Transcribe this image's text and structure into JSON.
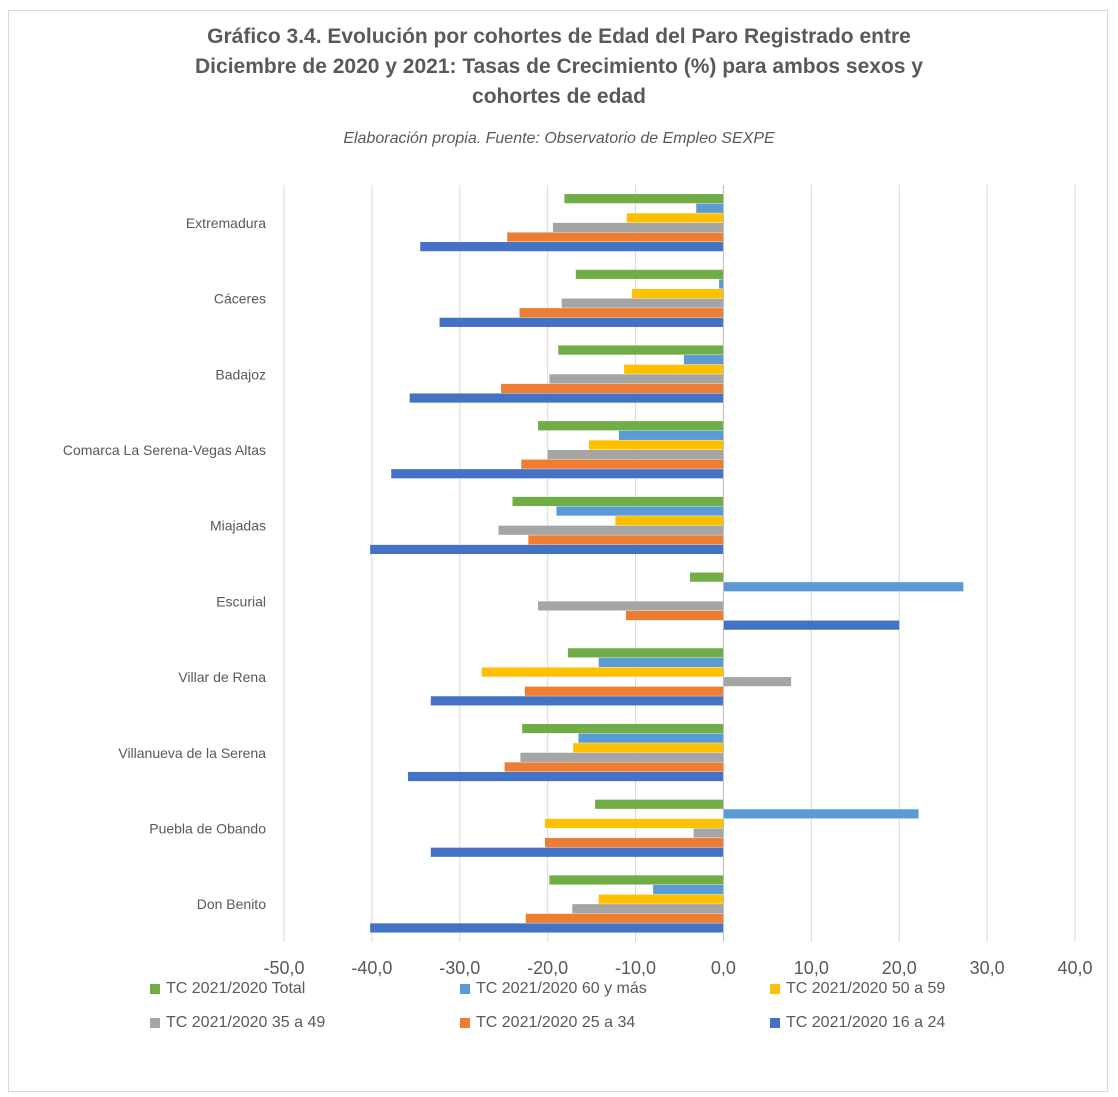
{
  "chart_data": {
    "type": "bar",
    "orientation": "horizontal",
    "title_lines": [
      "Gráfico 3.4. Evolución por cohortes de Edad del Paro Registrado  entre",
      "Diciembre de 2020 y 2021: Tasas de Crecimiento (%) para ambos sexos y",
      "cohortes de edad"
    ],
    "subtitle": "Elaboración propia. Fuente: Observatorio de Empleo SEXPE",
    "categories": [
      "Extremadura",
      "Cáceres",
      "Badajoz",
      "Comarca La Serena-Vegas Altas",
      "Miajadas",
      "Escurial",
      "Villar de Rena",
      "Villanueva de la Serena",
      "Puebla de Obando",
      "Don Benito"
    ],
    "xlim": [
      -50,
      40
    ],
    "ticks": [
      "-50,0",
      "-40,0",
      "-30,0",
      "-20,0",
      "-10,0",
      "0,0",
      "10,0",
      "20,0",
      "30,0",
      "40,0"
    ],
    "grid": "vertical",
    "legend_position": "bottom",
    "series": [
      {
        "name": "TC 2021/2020 Total",
        "color": "#70ad47",
        "values": [
          -18.1,
          -16.8,
          -18.8,
          -21.1,
          -24.0,
          -3.8,
          -17.7,
          -22.9,
          -14.6,
          -19.8
        ]
      },
      {
        "name": "TC 2021/2020 60 y más",
        "color": "#5b9bd5",
        "values": [
          -3.1,
          -0.5,
          -4.5,
          -11.9,
          -19.0,
          27.3,
          -14.2,
          -16.5,
          22.2,
          -8.0
        ]
      },
      {
        "name": "TC 2021/2020 50 a 59",
        "color": "#ffc000",
        "values": [
          -11.0,
          -10.4,
          -11.3,
          -15.3,
          -12.3,
          0.0,
          -27.5,
          -17.1,
          -20.3,
          -14.2
        ]
      },
      {
        "name": "TC 2021/2020 35 a 49",
        "color": "#a5a5a5",
        "values": [
          -19.4,
          -18.4,
          -19.8,
          -20.0,
          -25.6,
          -21.1,
          7.7,
          -23.1,
          -3.4,
          -17.2
        ]
      },
      {
        "name": "TC 2021/2020 25 a 34",
        "color": "#ed7d31",
        "values": [
          -24.6,
          -23.2,
          -25.3,
          -23.0,
          -22.2,
          -11.1,
          -22.6,
          -24.9,
          -20.3,
          -22.5
        ]
      },
      {
        "name": "TC 2021/2020 16 a 24",
        "color": "#4472c4",
        "values": [
          -34.5,
          -32.3,
          -35.7,
          -37.8,
          -40.2,
          20.0,
          -33.3,
          -35.9,
          -33.3,
          -40.2
        ]
      }
    ]
  }
}
